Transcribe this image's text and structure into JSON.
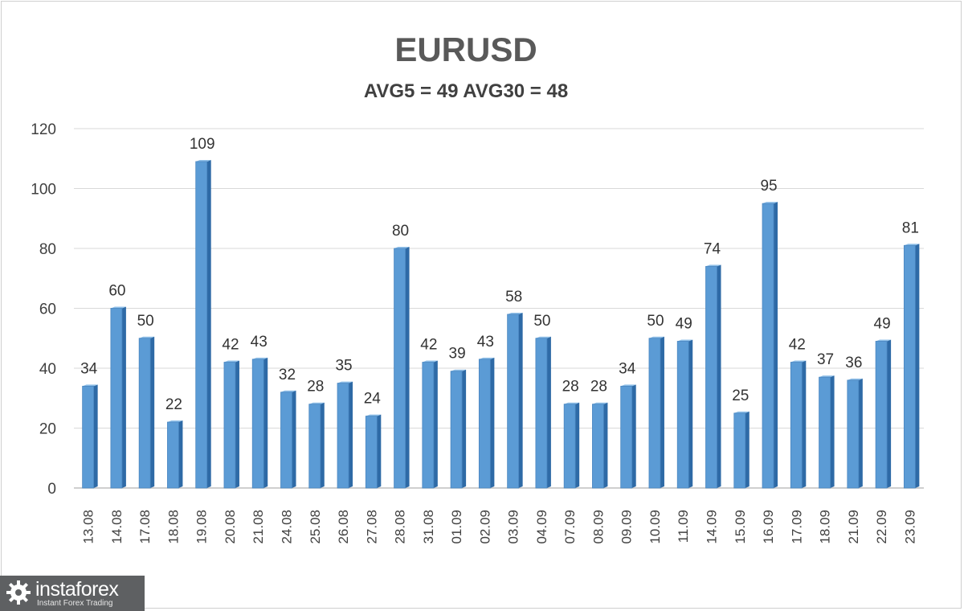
{
  "chart_data": {
    "type": "bar",
    "title": "EURUSD",
    "subtitle": "AVG5 = 49 AVG30 = 48",
    "categories": [
      "13.08",
      "14.08",
      "17.08",
      "18.08",
      "19.08",
      "20.08",
      "21.08",
      "24.08",
      "25.08",
      "26.08",
      "27.08",
      "28.08",
      "31.08",
      "01.09",
      "02.09",
      "03.09",
      "04.09",
      "07.09",
      "08.09",
      "09.09",
      "10.09",
      "11.09",
      "14.09",
      "15.09",
      "16.09",
      "17.09",
      "18.09",
      "21.09",
      "22.09",
      "23.09"
    ],
    "values": [
      34,
      60,
      50,
      22,
      109,
      42,
      43,
      32,
      28,
      35,
      24,
      80,
      42,
      39,
      43,
      58,
      50,
      28,
      28,
      34,
      50,
      49,
      74,
      25,
      95,
      42,
      37,
      36,
      49,
      81
    ],
    "ylim": [
      0,
      120
    ],
    "yticks": [
      0,
      20,
      40,
      60,
      80,
      100,
      120
    ],
    "grid": true,
    "bar_color": "#5b9bd5",
    "bar_side_color": "#2e6aa6",
    "data_labels": true
  },
  "branding": {
    "name": "instaforex",
    "tagline": "Instant Forex Trading",
    "icon": "gear-logo-icon"
  }
}
